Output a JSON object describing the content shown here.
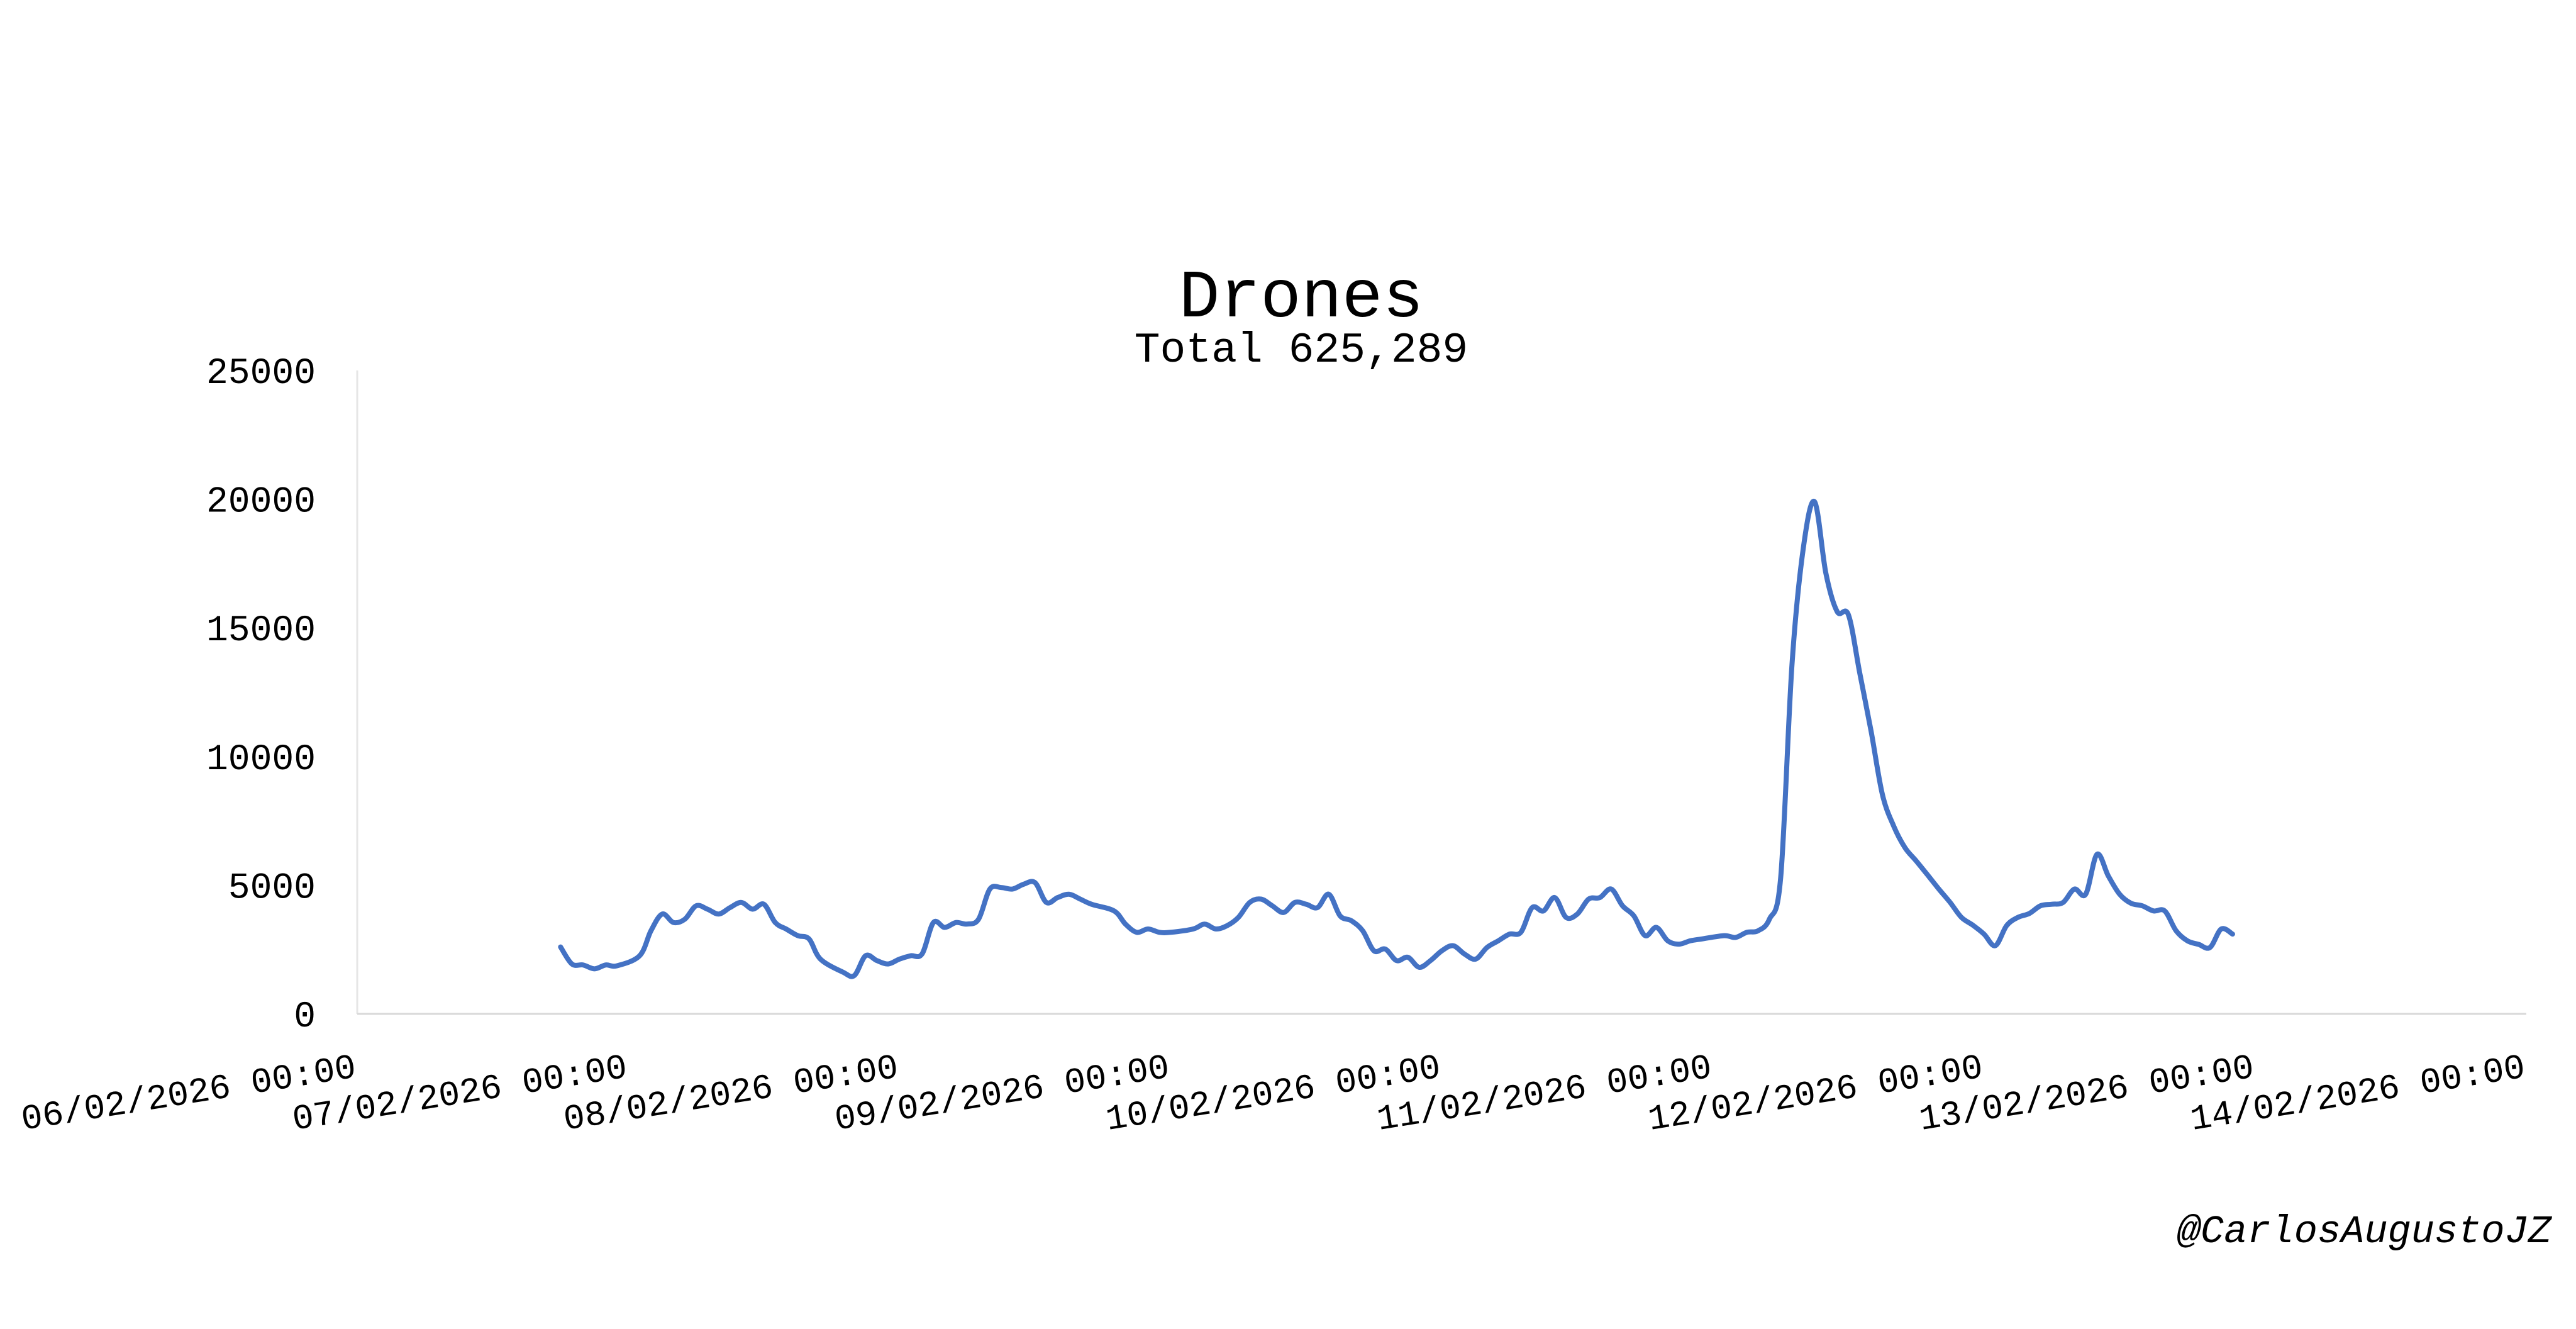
{
  "chart_data": {
    "type": "line",
    "title": "Drones",
    "subtitle": "Total 625,289",
    "xlabel": "",
    "ylabel": "",
    "ylim": [
      0,
      25000
    ],
    "xlim": [
      "2026-02-06T00:00",
      "2026-02-14T00:00"
    ],
    "y_ticks": [
      "0",
      "5000",
      "10000",
      "15000",
      "20000",
      "25000"
    ],
    "x_ticks": [
      "06/02/2026 00:00",
      "07/02/2026 00:00",
      "08/02/2026 00:00",
      "09/02/2026 00:00",
      "10/02/2026 00:00",
      "11/02/2026 00:00",
      "12/02/2026 00:00",
      "13/02/2026 00:00",
      "14/02/2026 00:00"
    ],
    "grid": false,
    "legend": "none",
    "line_color": "#4472C4",
    "series": [
      {
        "points": [
          [
            "2026-02-06T18:00",
            2600
          ],
          [
            "2026-02-06T19:00",
            1940
          ],
          [
            "2026-02-06T20:00",
            1900
          ],
          [
            "2026-02-06T21:00",
            1750
          ],
          [
            "2026-02-06T22:00",
            1900
          ],
          [
            "2026-02-06T23:00",
            1870
          ],
          [
            "2026-02-07T01:00",
            2260
          ],
          [
            "2026-02-07T02:00",
            3230
          ],
          [
            "2026-02-07T03:00",
            3880
          ],
          [
            "2026-02-07T04:00",
            3550
          ],
          [
            "2026-02-07T05:00",
            3680
          ],
          [
            "2026-02-07T06:00",
            4200
          ],
          [
            "2026-02-07T07:00",
            4070
          ],
          [
            "2026-02-07T08:00",
            3880
          ],
          [
            "2026-02-07T09:00",
            4130
          ],
          [
            "2026-02-07T10:00",
            4330
          ],
          [
            "2026-02-07T11:00",
            4070
          ],
          [
            "2026-02-07T12:00",
            4260
          ],
          [
            "2026-02-07T13:00",
            3550
          ],
          [
            "2026-02-07T14:00",
            3290
          ],
          [
            "2026-02-07T15:00",
            3040
          ],
          [
            "2026-02-07T16:00",
            2910
          ],
          [
            "2026-02-07T17:00",
            2130
          ],
          [
            "2026-02-07T19:00",
            1620
          ],
          [
            "2026-02-07T20:00",
            1490
          ],
          [
            "2026-02-07T21:00",
            2260
          ],
          [
            "2026-02-07T22:00",
            2070
          ],
          [
            "2026-02-07T23:00",
            1940
          ],
          [
            "2026-02-08T00:00",
            2130
          ],
          [
            "2026-02-08T01:00",
            2260
          ],
          [
            "2026-02-08T02:00",
            2330
          ],
          [
            "2026-02-08T03:00",
            3550
          ],
          [
            "2026-02-08T04:00",
            3360
          ],
          [
            "2026-02-08T05:00",
            3550
          ],
          [
            "2026-02-08T06:00",
            3490
          ],
          [
            "2026-02-08T07:00",
            3680
          ],
          [
            "2026-02-08T08:00",
            4850
          ],
          [
            "2026-02-08T09:00",
            4910
          ],
          [
            "2026-02-08T10:00",
            4850
          ],
          [
            "2026-02-08T11:00",
            5040
          ],
          [
            "2026-02-08T12:00",
            5100
          ],
          [
            "2026-02-08T13:00",
            4330
          ],
          [
            "2026-02-08T14:00",
            4520
          ],
          [
            "2026-02-08T15:00",
            4650
          ],
          [
            "2026-02-08T16:00",
            4460
          ],
          [
            "2026-02-08T17:00",
            4260
          ],
          [
            "2026-02-08T19:00",
            4000
          ],
          [
            "2026-02-08T20:00",
            3490
          ],
          [
            "2026-02-08T21:00",
            3170
          ],
          [
            "2026-02-08T22:00",
            3300
          ],
          [
            "2026-02-08T23:00",
            3170
          ],
          [
            "2026-02-09T00:00",
            3170
          ],
          [
            "2026-02-09T02:00",
            3300
          ],
          [
            "2026-02-09T03:00",
            3490
          ],
          [
            "2026-02-09T04:00",
            3300
          ],
          [
            "2026-02-09T05:00",
            3430
          ],
          [
            "2026-02-09T06:00",
            3750
          ],
          [
            "2026-02-09T07:00",
            4330
          ],
          [
            "2026-02-09T08:00",
            4460
          ],
          [
            "2026-02-09T09:00",
            4200
          ],
          [
            "2026-02-09T10:00",
            3940
          ],
          [
            "2026-02-09T11:00",
            4330
          ],
          [
            "2026-02-09T12:00",
            4260
          ],
          [
            "2026-02-09T13:00",
            4130
          ],
          [
            "2026-02-09T14:00",
            4650
          ],
          [
            "2026-02-09T15:00",
            3810
          ],
          [
            "2026-02-09T16:00",
            3620
          ],
          [
            "2026-02-09T17:00",
            3230
          ],
          [
            "2026-02-09T18:00",
            2450
          ],
          [
            "2026-02-09T19:00",
            2520
          ],
          [
            "2026-02-09T20:00",
            2070
          ],
          [
            "2026-02-09T21:00",
            2200
          ],
          [
            "2026-02-09T22:00",
            1810
          ],
          [
            "2026-02-09T23:00",
            2070
          ],
          [
            "2026-02-10T00:00",
            2450
          ],
          [
            "2026-02-10T01:00",
            2650
          ],
          [
            "2026-02-10T02:00",
            2330
          ],
          [
            "2026-02-10T03:00",
            2130
          ],
          [
            "2026-02-10T04:00",
            2580
          ],
          [
            "2026-02-10T05:00",
            2840
          ],
          [
            "2026-02-10T06:00",
            3100
          ],
          [
            "2026-02-10T07:00",
            3170
          ],
          [
            "2026-02-10T08:00",
            4130
          ],
          [
            "2026-02-10T09:00",
            4000
          ],
          [
            "2026-02-10T10:00",
            4520
          ],
          [
            "2026-02-10T11:00",
            3750
          ],
          [
            "2026-02-10T12:00",
            3880
          ],
          [
            "2026-02-10T13:00",
            4460
          ],
          [
            "2026-02-10T14:00",
            4520
          ],
          [
            "2026-02-10T15:00",
            4850
          ],
          [
            "2026-02-10T16:00",
            4200
          ],
          [
            "2026-02-10T17:00",
            3810
          ],
          [
            "2026-02-10T18:00",
            3040
          ],
          [
            "2026-02-10T19:00",
            3360
          ],
          [
            "2026-02-10T20:00",
            2840
          ],
          [
            "2026-02-10T21:00",
            2710
          ],
          [
            "2026-02-10T22:00",
            2840
          ],
          [
            "2026-02-10T23:00",
            2910
          ],
          [
            "2026-02-11T01:00",
            3040
          ],
          [
            "2026-02-11T02:00",
            2970
          ],
          [
            "2026-02-11T03:00",
            3170
          ],
          [
            "2026-02-11T04:00",
            3230
          ],
          [
            "2026-02-11T05:00",
            3680
          ],
          [
            "2026-02-11T06:00",
            5300
          ],
          [
            "2026-02-11T07:00",
            13570
          ],
          [
            "2026-02-11T08:00",
            18090
          ],
          [
            "2026-02-11T09:00",
            19900
          ],
          [
            "2026-02-11T10:00",
            17120
          ],
          [
            "2026-02-11T11:00",
            15630
          ],
          [
            "2026-02-11T12:00",
            15500
          ],
          [
            "2026-02-11T13:00",
            13240
          ],
          [
            "2026-02-11T14:00",
            10990
          ],
          [
            "2026-02-11T15:00",
            8530
          ],
          [
            "2026-02-11T16:00",
            7300
          ],
          [
            "2026-02-11T17:00",
            6460
          ],
          [
            "2026-02-11T18:00",
            5940
          ],
          [
            "2026-02-11T19:00",
            5400
          ],
          [
            "2026-02-11T20:00",
            4850
          ],
          [
            "2026-02-11T21:00",
            4330
          ],
          [
            "2026-02-11T22:00",
            3750
          ],
          [
            "2026-02-11T23:00",
            3450
          ],
          [
            "2026-02-12T00:00",
            3100
          ],
          [
            "2026-02-12T01:00",
            2650
          ],
          [
            "2026-02-12T02:00",
            3430
          ],
          [
            "2026-02-12T03:00",
            3750
          ],
          [
            "2026-02-12T04:00",
            3900
          ],
          [
            "2026-02-12T05:00",
            4200
          ],
          [
            "2026-02-12T06:00",
            4260
          ],
          [
            "2026-02-12T07:00",
            4330
          ],
          [
            "2026-02-12T08:00",
            4850
          ],
          [
            "2026-02-12T09:00",
            4650
          ],
          [
            "2026-02-12T10:00",
            6200
          ],
          [
            "2026-02-12T11:00",
            5360
          ],
          [
            "2026-02-12T12:00",
            4650
          ],
          [
            "2026-02-12T13:00",
            4300
          ],
          [
            "2026-02-12T14:00",
            4200
          ],
          [
            "2026-02-12T15:00",
            4000
          ],
          [
            "2026-02-12T16:00",
            4000
          ],
          [
            "2026-02-12T17:00",
            3230
          ],
          [
            "2026-02-12T18:00",
            2840
          ],
          [
            "2026-02-12T19:00",
            2700
          ],
          [
            "2026-02-12T20:00",
            2580
          ],
          [
            "2026-02-12T21:00",
            3300
          ],
          [
            "2026-02-12T22:00",
            3100
          ]
        ]
      }
    ]
  },
  "watermark": "@CarlosAugustoJZ"
}
